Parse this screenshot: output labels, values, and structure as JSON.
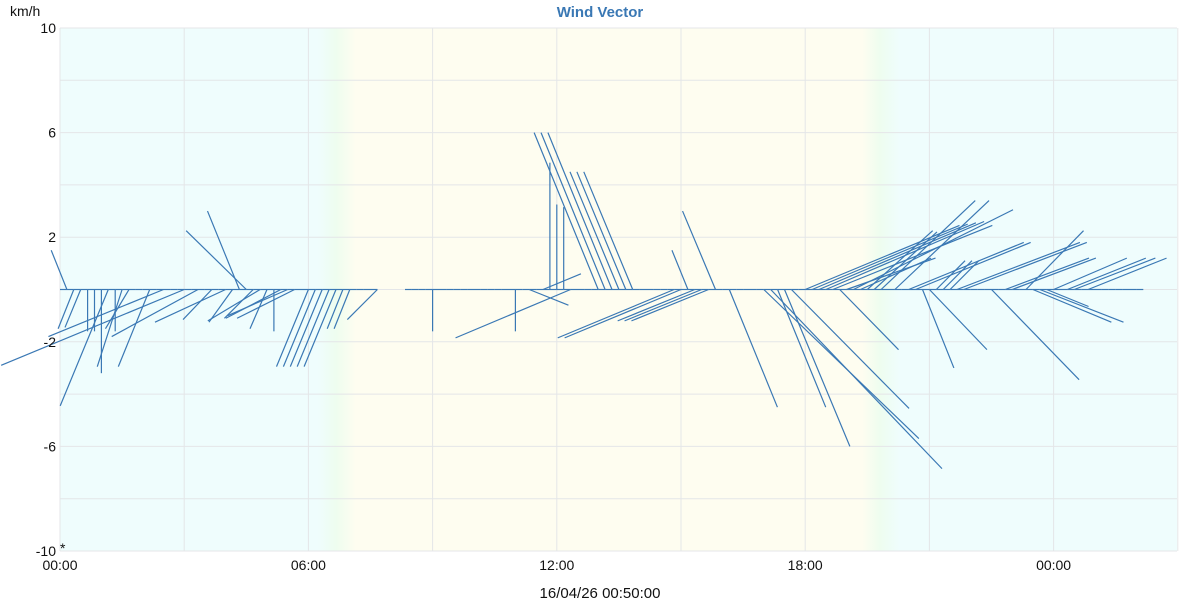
{
  "chart_data": {
    "type": "line",
    "subtype": "wind-vector",
    "title": "Wind Vector",
    "ylabel": "km/h",
    "xlabel": "",
    "ylim": [
      -10,
      10
    ],
    "yticks": [
      "10",
      "6",
      "2",
      "-2",
      "-6",
      "-10"
    ],
    "xticks": [
      "00:00",
      "06:00",
      "12:00",
      "18:00",
      "00:00"
    ],
    "grid": true,
    "legend": "none",
    "marker_label": "*",
    "timestamp": "16/04/26 00:50:00",
    "colors": {
      "vector": "#3a78b4",
      "title": "#3a78b4",
      "night": "#effdfd",
      "day": "#fefdf0",
      "twilight": "#eefdef",
      "grid": "#e4e6e8"
    },
    "vector_fields": [
      "time",
      "u_kmh",
      "v_kmh"
    ],
    "vectors": [
      [
        "00:00",
        0,
        0
      ],
      [
        "00:10",
        -0.6,
        1.5
      ],
      [
        "00:20",
        -0.6,
        -1.5
      ],
      [
        "00:30",
        -0.6,
        -1.45
      ],
      [
        "00:40",
        0,
        -1.6
      ],
      [
        "00:50",
        0,
        -1.6
      ],
      [
        "01:00",
        0,
        -3.2
      ],
      [
        "01:10",
        -1.84,
        -4.45
      ],
      [
        "01:20",
        0,
        -1.6
      ],
      [
        "01:30",
        -0.95,
        -2.95
      ],
      [
        "01:40",
        -0.9,
        -1.5
      ],
      [
        "01:50",
        0,
        0
      ],
      [
        "02:00",
        0,
        0
      ],
      [
        "02:10",
        -1.2,
        -2.95
      ],
      [
        "02:20",
        0,
        0
      ],
      [
        "02:30",
        -4.4,
        -1.8
      ],
      [
        "02:40",
        0,
        0
      ],
      [
        "02:50",
        0,
        0
      ],
      [
        "03:00",
        -7,
        -2.9
      ],
      [
        "03:10",
        0,
        0
      ],
      [
        "03:20",
        -3.3,
        -1.8
      ],
      [
        "03:30",
        0,
        0
      ],
      [
        "03:40",
        -1.1,
        -1.15
      ],
      [
        "03:50",
        0,
        0
      ],
      [
        "04:00",
        -2.7,
        -1.25
      ],
      [
        "04:10",
        -0.9,
        -1.25
      ],
      [
        "04:20",
        -1.22,
        3.0
      ],
      [
        "04:30",
        -2.3,
        2.25
      ],
      [
        "04:40",
        -1.1,
        -1.1
      ],
      [
        "04:50",
        -2.0,
        -1.2
      ],
      [
        "05:00",
        -0.65,
        -1.5
      ],
      [
        "05:10",
        0,
        -1.6
      ],
      [
        "05:20",
        -2.1,
        -1.1
      ],
      [
        "05:30",
        -2.3,
        -1.0
      ],
      [
        "05:40",
        -2.2,
        -1.1
      ],
      [
        "05:50",
        0,
        0
      ],
      [
        "06:00",
        -1.22,
        -2.95
      ],
      [
        "06:10",
        -1.22,
        -2.95
      ],
      [
        "06:20",
        -1.22,
        -2.95
      ],
      [
        "06:30",
        -1.22,
        -2.95
      ],
      [
        "06:40",
        -1.22,
        -2.95
      ],
      [
        "06:50",
        -0.6,
        -1.5
      ],
      [
        "07:00",
        -0.6,
        -1.5
      ],
      [
        "07:10",
        0,
        0
      ],
      [
        "07:20",
        0,
        0
      ],
      [
        "07:30",
        0,
        0
      ],
      [
        "07:40",
        -1.15,
        -1.15
      ],
      [
        "08:20",
        0,
        0
      ],
      [
        "08:30",
        0,
        0
      ],
      [
        "08:40",
        0,
        0
      ],
      [
        "08:50",
        0,
        0
      ],
      [
        "09:00",
        0,
        -1.6
      ],
      [
        "09:10",
        0,
        0
      ],
      [
        "09:20",
        0,
        0
      ],
      [
        "09:30",
        0,
        0
      ],
      [
        "09:40",
        0,
        0
      ],
      [
        "09:50",
        0,
        0
      ],
      [
        "10:00",
        0,
        0
      ],
      [
        "10:10",
        0,
        0
      ],
      [
        "10:20",
        0,
        0
      ],
      [
        "10:30",
        0,
        0
      ],
      [
        "10:40",
        0,
        0
      ],
      [
        "10:50",
        0,
        0
      ],
      [
        "11:00",
        0,
        -1.6
      ],
      [
        "11:10",
        0,
        0
      ],
      [
        "11:20",
        1.5,
        -0.6
      ],
      [
        "11:30",
        0,
        0
      ],
      [
        "11:40",
        1.45,
        0.6
      ],
      [
        "11:50",
        0,
        4.85
      ],
      [
        "12:00",
        0,
        3.25
      ],
      [
        "12:10",
        0,
        3.15
      ],
      [
        "12:20",
        -4.4,
        -1.85
      ],
      [
        "12:30",
        0,
        0
      ],
      [
        "12:40",
        0,
        0
      ],
      [
        "12:50",
        0,
        0
      ],
      [
        "13:00",
        -2.45,
        6
      ],
      [
        "13:10",
        -2.45,
        6
      ],
      [
        "13:20",
        -2.45,
        6
      ],
      [
        "13:30",
        -1.87,
        4.5
      ],
      [
        "13:40",
        -1.87,
        4.5
      ],
      [
        "13:50",
        -1.87,
        4.5
      ],
      [
        "14:00",
        0,
        0
      ],
      [
        "14:10",
        0,
        0
      ],
      [
        "14:20",
        0,
        0
      ],
      [
        "14:30",
        0,
        0
      ],
      [
        "14:40",
        0,
        0
      ],
      [
        "14:50",
        -4.45,
        -1.85
      ],
      [
        "15:00",
        -4.45,
        -1.85
      ],
      [
        "15:10",
        -0.61,
        1.5
      ],
      [
        "15:20",
        -2.95,
        -1.2
      ],
      [
        "15:30",
        -2.95,
        -1.2
      ],
      [
        "15:40",
        -2.95,
        -1.2
      ],
      [
        "15:50",
        -1.26,
        3.0
      ],
      [
        "16:00",
        0,
        0
      ],
      [
        "16:10",
        1.84,
        -4.5
      ],
      [
        "16:20",
        0,
        0
      ],
      [
        "16:30",
        0,
        0
      ],
      [
        "16:40",
        0,
        0
      ],
      [
        "16:50",
        0,
        0
      ],
      [
        "17:00",
        5.93,
        -5.7
      ],
      [
        "17:10",
        6.55,
        -6.85
      ],
      [
        "17:20",
        1.84,
        -4.5
      ],
      [
        "17:30",
        2.5,
        -6.0
      ],
      [
        "17:40",
        4.5,
        -4.55
      ],
      [
        "17:50",
        0,
        0
      ],
      [
        "18:00",
        5.9,
        2.45
      ],
      [
        "18:10",
        5.95,
        2.5
      ],
      [
        "18:20",
        6.0,
        2.55
      ],
      [
        "18:30",
        6.05,
        2.6
      ],
      [
        "18:40",
        6.1,
        2.45
      ],
      [
        "18:50",
        2.25,
        -2.3
      ],
      [
        "19:00",
        3.4,
        1.2
      ],
      [
        "19:10",
        6.1,
        3.05
      ],
      [
        "19:20",
        2.7,
        1.2
      ],
      [
        "19:30",
        2.5,
        2.25
      ],
      [
        "19:40",
        2.4,
        2.2
      ],
      [
        "19:50",
        3.6,
        3.4
      ],
      [
        "20:00",
        0,
        0
      ],
      [
        "20:10",
        3.6,
        3.4
      ],
      [
        "20:20",
        0,
        0
      ],
      [
        "20:30",
        4.4,
        1.8
      ],
      [
        "20:40",
        4.4,
        1.8
      ],
      [
        "20:50",
        1.2,
        -3.0
      ],
      [
        "21:00",
        2.2,
        -2.3
      ],
      [
        "21:10",
        1.1,
        1.1
      ],
      [
        "21:20",
        1.1,
        1.1
      ],
      [
        "21:30",
        1.1,
        1.1
      ],
      [
        "21:40",
        4.7,
        1.8
      ],
      [
        "21:50",
        4.7,
        1.8
      ],
      [
        "22:00",
        0,
        0
      ],
      [
        "22:10",
        0,
        0
      ],
      [
        "22:20",
        0,
        0
      ],
      [
        "22:30",
        3.35,
        -3.45
      ],
      [
        "22:40",
        0,
        0
      ],
      [
        "22:50",
        3.2,
        1.2
      ],
      [
        "23:00",
        3.2,
        1.2
      ],
      [
        "23:10",
        0,
        0
      ],
      [
        "23:20",
        2.2,
        2.25
      ],
      [
        "23:30",
        3.0,
        -1.25
      ],
      [
        "23:40",
        3.2,
        -1.25
      ],
      [
        "23:50",
        1.6,
        -0.65
      ],
      [
        "00:00",
        2.8,
        1.2
      ],
      [
        "00:10",
        0,
        0
      ],
      [
        "00:20",
        3.0,
        1.2
      ],
      [
        "00:30",
        3.1,
        1.2
      ],
      [
        "00:40",
        0,
        0
      ],
      [
        "00:50",
        3.0,
        1.2
      ],
      [
        "01:00",
        0,
        0
      ],
      [
        "01:10",
        0,
        0
      ],
      [
        "01:20",
        0,
        0
      ],
      [
        "01:30",
        0,
        0
      ],
      [
        "01:40",
        0,
        0
      ],
      [
        "01:50",
        0,
        0
      ],
      [
        "02:00",
        0,
        0
      ],
      [
        "02:10",
        0,
        0
      ]
    ]
  }
}
